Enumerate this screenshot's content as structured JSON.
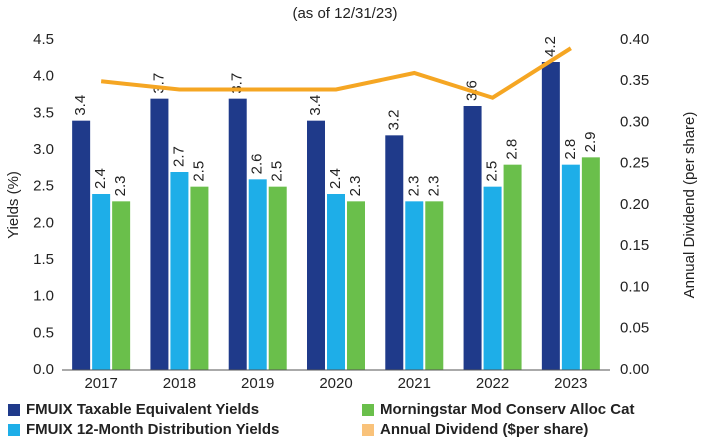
{
  "chart_data": {
    "type": "bar",
    "subtitle": "(as of 12/31/23)",
    "ylabel": "Yields (%)",
    "y2label": "Annual Dividend (per share)",
    "categories": [
      "2017",
      "2018",
      "2019",
      "2020",
      "2021",
      "2022",
      "2023"
    ],
    "series": [
      {
        "name": "FMUIX Taxable Equivalent Yields",
        "color": "#1f3a8a",
        "values": [
          3.4,
          3.7,
          3.7,
          3.4,
          3.2,
          3.6,
          4.2
        ]
      },
      {
        "name": "FMUIX 12-Month Distribution Yields",
        "color": "#1eaee8",
        "values": [
          2.4,
          2.7,
          2.6,
          2.4,
          2.3,
          2.5,
          2.8
        ]
      },
      {
        "name": "Morningstar Mod Conserv Alloc Cat",
        "color": "#6abf4b",
        "values": [
          2.3,
          2.5,
          2.5,
          2.3,
          2.3,
          2.8,
          2.9
        ]
      },
      {
        "name": "Annual Dividend ($per share)",
        "color": "#f5a623",
        "legend_color": "#f9c27a",
        "type": "line",
        "axis": "y2",
        "values": [
          0.35,
          0.34,
          0.34,
          0.34,
          0.36,
          0.33,
          0.39
        ]
      }
    ],
    "ylim": [
      0,
      4.5
    ],
    "yticks": [
      {
        "value": 0,
        "label": "0.0"
      },
      0.5,
      {
        "value": 1,
        "label": "1.0"
      },
      1.5,
      {
        "value": 2,
        "label": "2.0"
      },
      2.5,
      {
        "value": 3,
        "label": "3.0"
      },
      3.5,
      {
        "value": 4,
        "label": "4.0"
      },
      4.5
    ],
    "y2lim": [
      0,
      0.4
    ],
    "y2ticks": [
      {
        "value": 0,
        "label": "0.00"
      },
      0.05,
      {
        "value": 0.1,
        "label": "0.10"
      },
      0.15,
      {
        "value": 0.2,
        "label": "0.20"
      },
      0.25,
      {
        "value": 0.3,
        "label": "0.30"
      },
      0.35,
      {
        "value": 0.4,
        "label": "0.40"
      }
    ],
    "grid": false,
    "legend": "bottom"
  }
}
